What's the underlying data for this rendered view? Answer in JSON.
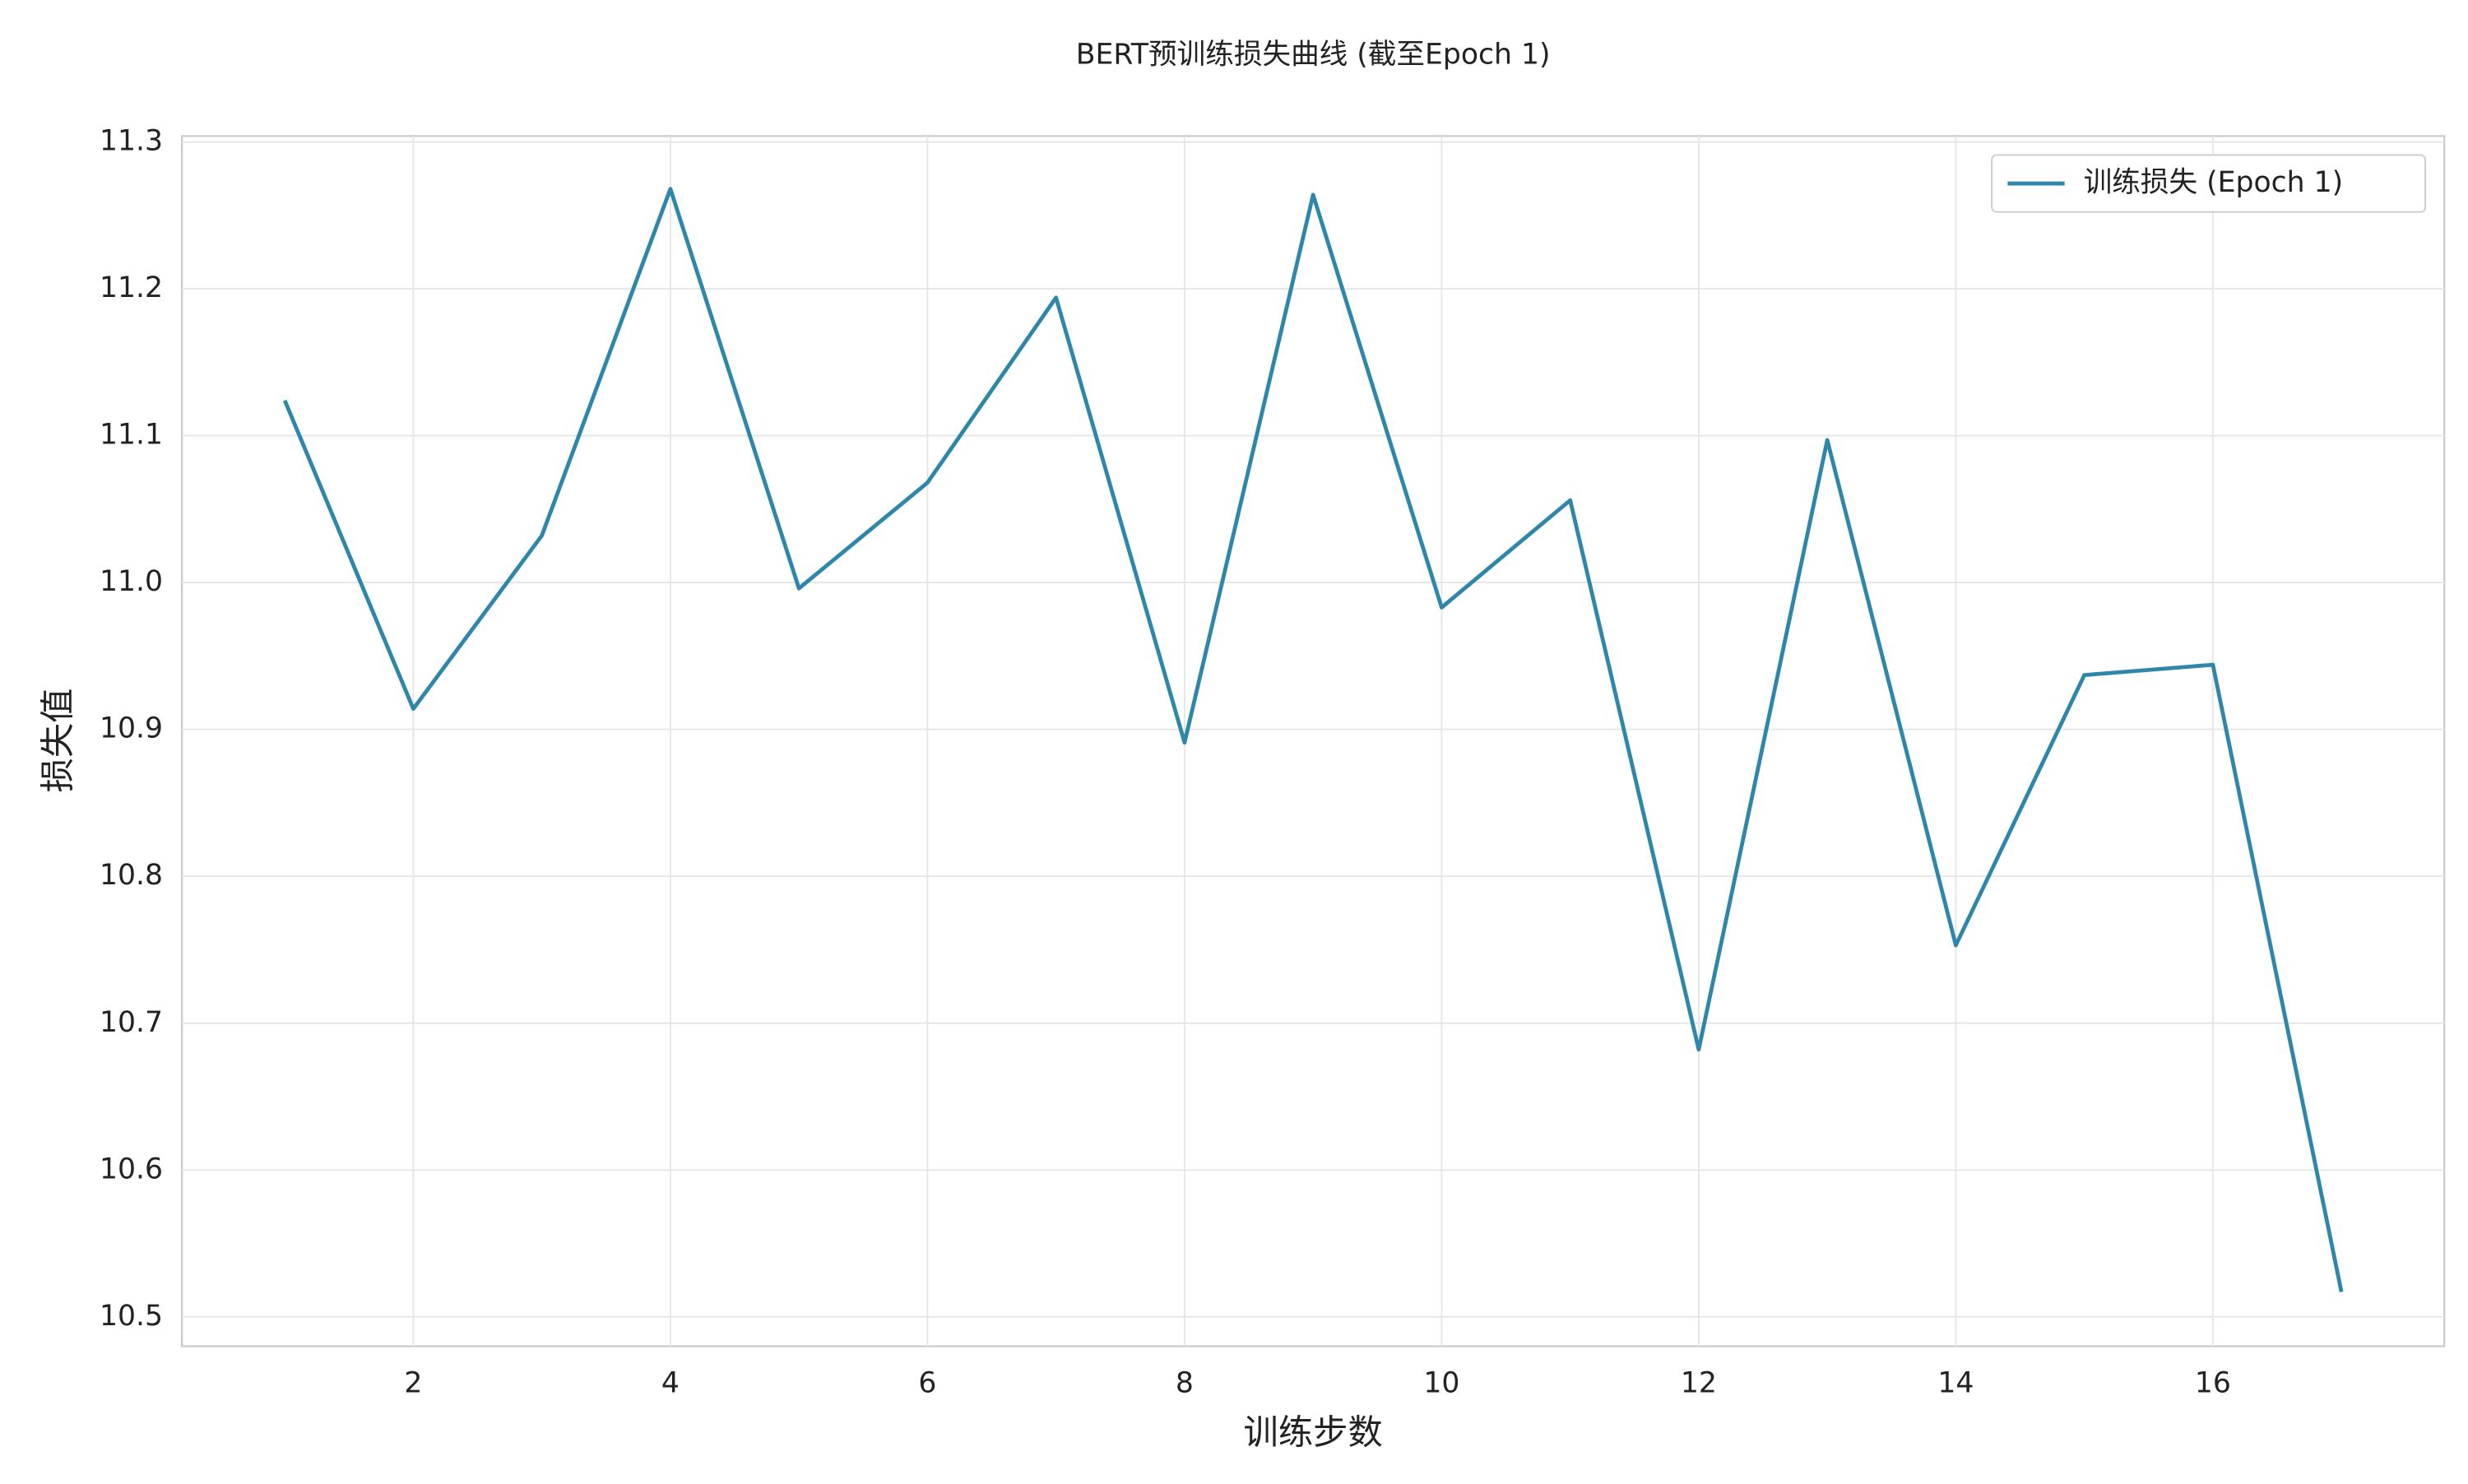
{
  "chart_data": {
    "type": "line",
    "title": "BERT预训练损失曲线 (截至Epoch 1)",
    "x_label": "训练步数",
    "y_label": "损失值",
    "x": [
      1,
      2,
      3,
      4,
      5,
      6,
      7,
      8,
      9,
      10,
      11,
      12,
      13,
      14,
      15,
      16,
      17
    ],
    "series": [
      {
        "name": "训练损失 (Epoch 1)",
        "color": "#2e86ab",
        "values": [
          11.124,
          10.914,
          11.032,
          11.268,
          10.996,
          11.068,
          11.194,
          10.891,
          11.264,
          10.983,
          11.056,
          10.682,
          11.097,
          10.753,
          10.937,
          10.944,
          10.517
        ]
      }
    ],
    "xlim": [
      0.2,
      17.8
    ],
    "ylim": [
      10.48,
      11.304
    ],
    "xticks": [
      2,
      4,
      6,
      8,
      10,
      12,
      14,
      16
    ],
    "yticks": [
      10.5,
      10.6,
      10.7,
      10.8,
      10.9,
      {
        "value": 11.0,
        "label": "11.0"
      },
      11.1,
      11.2,
      11.3
    ],
    "grid": true,
    "legend": "upper right"
  }
}
